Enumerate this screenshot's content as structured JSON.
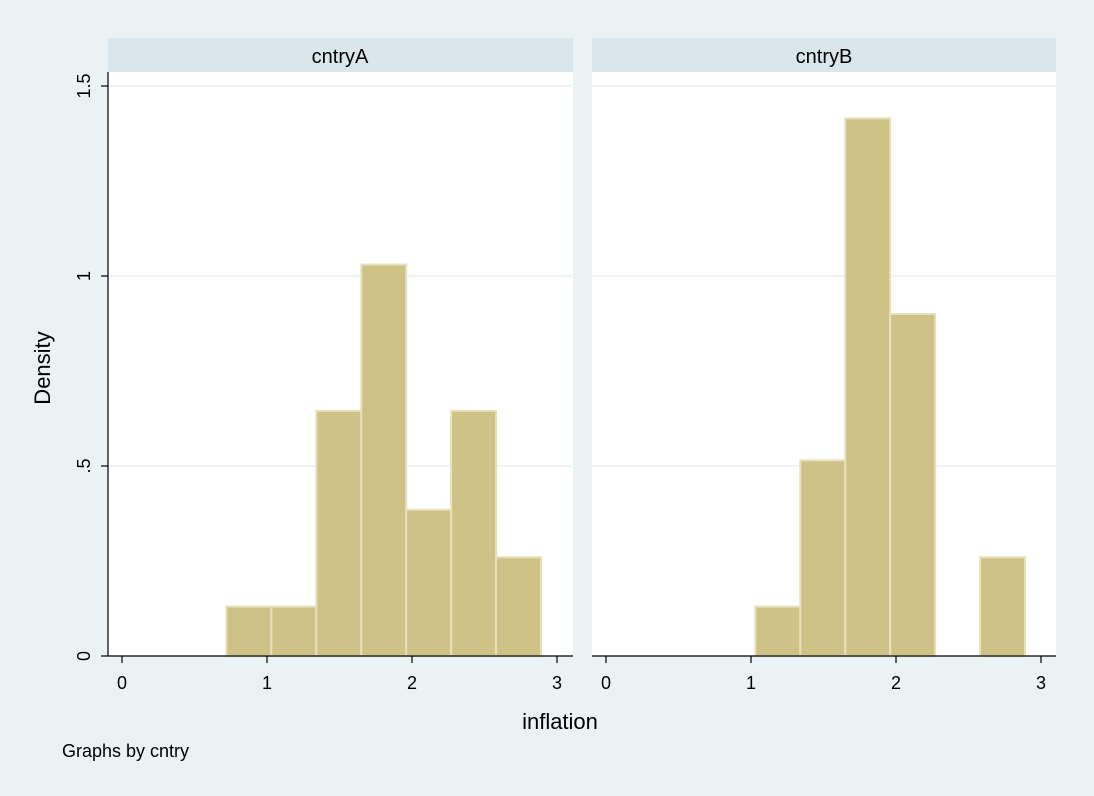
{
  "chart_data": {
    "type": "bar",
    "subtype": "histogram",
    "ylabel": "Density",
    "xlabel": "inflation",
    "note": "Graphs by cntry",
    "xlim": [
      0,
      3
    ],
    "ylim": [
      0,
      1.5
    ],
    "x_ticks": [
      {
        "value": 0,
        "label": "0"
      },
      {
        "value": 1,
        "label": "1"
      },
      {
        "value": 2,
        "label": "2"
      },
      {
        "value": 3,
        "label": "3"
      }
    ],
    "y_ticks": [
      {
        "value": 0,
        "label": "0"
      },
      {
        "value": 0.5,
        "label": ".5"
      },
      {
        "value": 1,
        "label": "1"
      },
      {
        "value": 1.5,
        "label": "1.5"
      }
    ],
    "grid": true,
    "bar_fill": "#cec286",
    "bar_outline": "#e6e0bc",
    "panels": [
      {
        "name": "cntryA",
        "bins": [
          {
            "x0": 0.72,
            "x1": 1.03,
            "density": 0.13
          },
          {
            "x0": 1.03,
            "x1": 1.34,
            "density": 0.13
          },
          {
            "x0": 1.34,
            "x1": 1.65,
            "density": 0.645
          },
          {
            "x0": 1.65,
            "x1": 1.96,
            "density": 1.03
          },
          {
            "x0": 1.96,
            "x1": 2.27,
            "density": 0.385
          },
          {
            "x0": 2.27,
            "x1": 2.58,
            "density": 0.645
          },
          {
            "x0": 2.58,
            "x1": 2.89,
            "density": 0.26
          }
        ]
      },
      {
        "name": "cntryB",
        "bins": [
          {
            "x0": 1.03,
            "x1": 1.34,
            "density": 0.13
          },
          {
            "x0": 1.34,
            "x1": 1.65,
            "density": 0.515
          },
          {
            "x0": 1.65,
            "x1": 1.96,
            "density": 1.415
          },
          {
            "x0": 1.96,
            "x1": 2.27,
            "density": 0.9
          },
          {
            "x0": 2.58,
            "x1": 2.89,
            "density": 0.26
          }
        ]
      }
    ]
  }
}
